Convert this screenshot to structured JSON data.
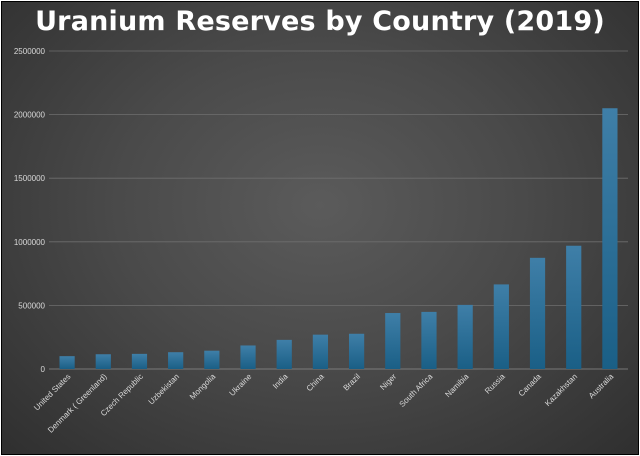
{
  "chart_data": {
    "type": "bar",
    "title": "Uranium Reserves by Country (2019)",
    "xlabel": "",
    "ylabel": "",
    "categories": [
      "United States",
      "Denmark ( Greenland)",
      "Czech Republic",
      "Uzbekistan",
      "Mongolia",
      "Ukraine",
      "India",
      "China",
      "Brazil",
      "Niger",
      "South Africa",
      "Namibia",
      "Russia",
      "Canada",
      "Kazakhstan",
      "Australia"
    ],
    "values": [
      101000,
      116000,
      119000,
      132000,
      144000,
      185000,
      229000,
      270000,
      277000,
      440000,
      449000,
      504000,
      665000,
      874000,
      969000,
      2050000
    ],
    "ylim": [
      0,
      2500000
    ],
    "yticks": [
      0,
      500000,
      1000000,
      1500000,
      2000000,
      2500000
    ],
    "ytick_labels": [
      "0",
      "500000",
      "1000000",
      "1500000",
      "2000000",
      "2500000"
    ],
    "grid": true,
    "legend": "none",
    "bar_color_top": "#3f7fa8",
    "bar_color_bottom": "#1a5f86"
  }
}
